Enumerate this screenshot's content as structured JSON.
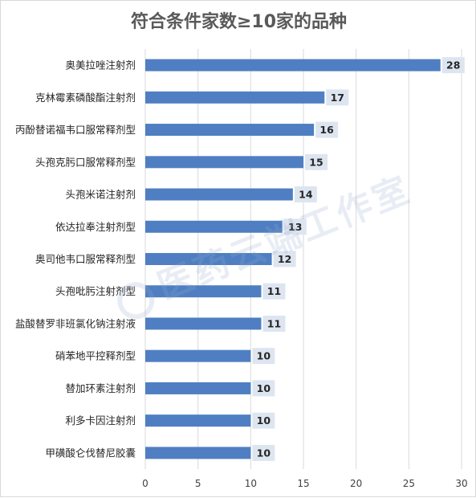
{
  "chart_data": {
    "type": "bar",
    "orientation": "horizontal",
    "title": "符合条件家数≥10家的品种",
    "categories": [
      "奥美拉唑注射剂",
      "克林霉素磷酸酯注射剂",
      "丙酚替诺福韦口服常释剂型",
      "头孢克肟口服常释剂型",
      "头孢米诺注射剂",
      "依达拉奉注射剂型",
      "奥司他韦口服常释剂型",
      "头孢吡肟注射剂型",
      "盐酸替罗非班氯化钠注射液",
      "硝苯地平控释剂型",
      "替加环素注射剂",
      "利多卡因注射剂",
      "甲磺酸仑伐替尼胶囊"
    ],
    "values": [
      28,
      17,
      16,
      15,
      14,
      13,
      12,
      11,
      11,
      10,
      10,
      10,
      10
    ],
    "xlim": [
      0,
      30
    ],
    "xticks": [
      0,
      5,
      10,
      15,
      20,
      25,
      30
    ],
    "grid": "vertical",
    "bar_color": "#4f7fc2",
    "label_bg": "#dde5f0"
  },
  "watermark": "医药云端工作室"
}
